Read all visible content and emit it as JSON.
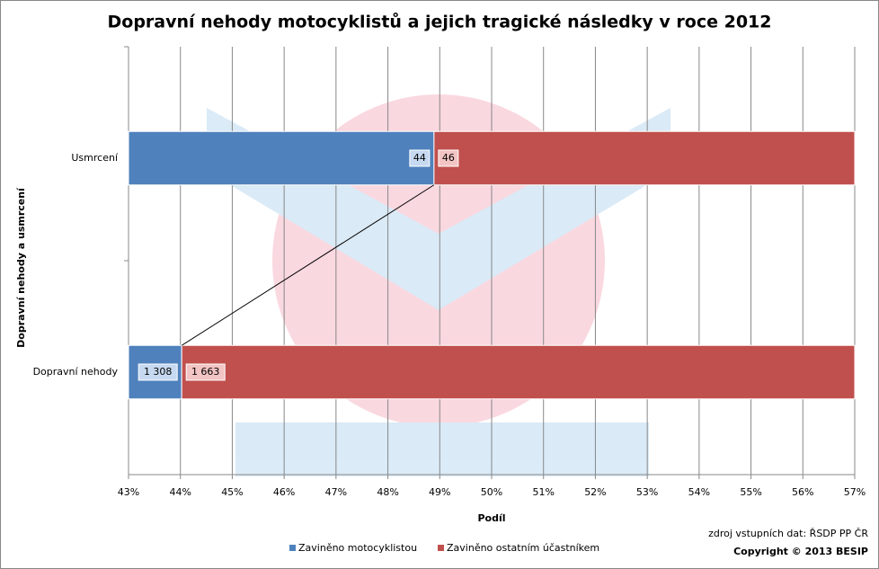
{
  "chart_data": {
    "type": "bar",
    "orientation": "horizontal",
    "stacking": "percent",
    "title": "Dopravní nehody motocyklistů a jejich tragické následky v roce 2012",
    "y_label": "Dopravní nehody a usmrcení",
    "x_label": "Podíl",
    "categories": [
      "Usmrcení",
      "Dopravní nehody"
    ],
    "series": [
      {
        "name": "Zaviněno motocyklistou",
        "color": "#4f81bd",
        "values": [
          44,
          1308
        ],
        "value_labels": [
          "44",
          "1 308"
        ]
      },
      {
        "name": "Zaviněno ostatním účastníkem",
        "color": "#c0504d",
        "values": [
          46,
          1663
        ],
        "value_labels": [
          "46",
          "1 663"
        ]
      }
    ],
    "xlim": [
      43,
      57
    ],
    "xticks": [
      {
        "value": 43,
        "label": "43%"
      },
      {
        "value": 44,
        "label": "44%"
      },
      {
        "value": 45,
        "label": "45%"
      },
      {
        "value": 46,
        "label": "46%"
      },
      {
        "value": 47,
        "label": "47%"
      },
      {
        "value": 48,
        "label": "48%"
      },
      {
        "value": 49,
        "label": "49%"
      },
      {
        "value": 50,
        "label": "50%"
      },
      {
        "value": 51,
        "label": "51%"
      },
      {
        "value": 52,
        "label": "52%"
      },
      {
        "value": 53,
        "label": "53%"
      },
      {
        "value": 54,
        "label": "54%"
      },
      {
        "value": 55,
        "label": "55%"
      },
      {
        "value": 56,
        "label": "56%"
      },
      {
        "value": 57,
        "label": "57%"
      }
    ],
    "grid": true,
    "legend": "bottom",
    "series_lines": true,
    "source": "zdroj vstupních dat: ŘSDP PP ČR",
    "copyright": "Copyright © 2013 BESIP"
  }
}
